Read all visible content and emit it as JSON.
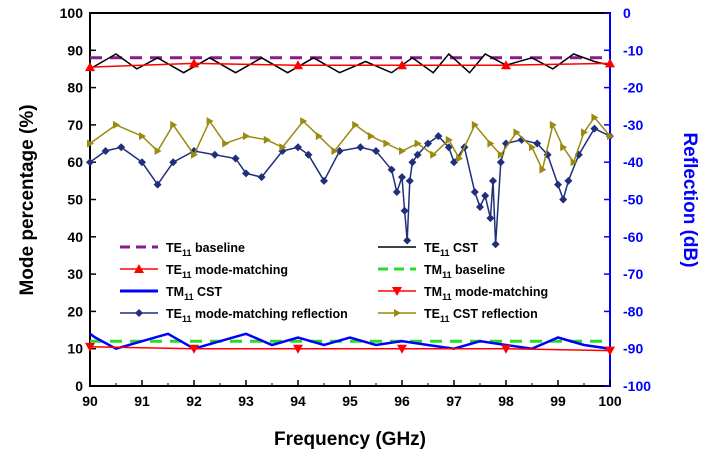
{
  "chart_data": {
    "type": "line",
    "title": "",
    "xlabel": "Frequency (GHz)",
    "ylabel": "Mode percentage (%)",
    "y2label": "Reflection (dB)",
    "xlim": [
      90,
      100
    ],
    "ylim": [
      0,
      100
    ],
    "y2lim": [
      -100,
      0
    ],
    "xticks": [
      "90",
      "91",
      "92",
      "93",
      "94",
      "95",
      "96",
      "97",
      "98",
      "99",
      "100"
    ],
    "yticks": [
      "0",
      "10",
      "20",
      "30",
      "40",
      "50",
      "60",
      "70",
      "80",
      "90",
      "100"
    ],
    "y2ticks": [
      "0",
      "-10",
      "-20",
      "-30",
      "-40",
      "-50",
      "-60",
      "-70",
      "-80",
      "-90",
      "-100"
    ],
    "grid": false,
    "legend_position": "center-left (inside plot, two columns)",
    "colors": {
      "te11_baseline": "#8b1a8b",
      "te11_cst": "#000000",
      "te11_mm": "#ff0000",
      "tm11_baseline": "#22dd22",
      "tm11_cst": "#0000ff",
      "tm11_mm": "#ff0000",
      "mm_reflection": "#1f2f7a",
      "cst_reflection": "#9a8a10",
      "right_axis": "#0000ff"
    },
    "series": [
      {
        "name": "TE11 baseline",
        "axis": "left",
        "style": "dash",
        "x": [
          90,
          100
        ],
        "y": [
          88,
          88
        ]
      },
      {
        "name": "TE11 CST",
        "axis": "left",
        "style": "line",
        "x": [
          90,
          90.5,
          90.9,
          91.3,
          91.8,
          92.3,
          92.8,
          93.3,
          93.8,
          94.3,
          94.8,
          95.3,
          95.8,
          96.2,
          96.6,
          96.9,
          97.3,
          97.6,
          98.0,
          98.5,
          98.9,
          99.3,
          99.7,
          100
        ],
        "y": [
          85,
          89,
          85,
          88,
          84,
          88,
          84,
          88,
          84,
          88,
          84,
          87,
          84,
          88,
          84,
          89,
          84,
          89,
          86,
          88,
          85,
          89,
          87,
          86
        ]
      },
      {
        "name": "TE11 mode-matching",
        "axis": "left",
        "style": "marker-up",
        "x": [
          90,
          92,
          94,
          96,
          98,
          100
        ],
        "y": [
          85.5,
          86.5,
          86,
          86,
          86,
          86.5
        ]
      },
      {
        "name": "TM11 baseline",
        "axis": "left",
        "style": "dash",
        "x": [
          90,
          100
        ],
        "y": [
          12,
          12
        ]
      },
      {
        "name": "TM11 CST",
        "axis": "left",
        "style": "line",
        "x": [
          90,
          90.1,
          90.5,
          91.0,
          91.5,
          92.0,
          92.5,
          93.0,
          93.5,
          94.0,
          94.5,
          95.0,
          95.5,
          96.0,
          96.5,
          97.0,
          97.5,
          98.0,
          98.5,
          99.0,
          99.5,
          100
        ],
        "y": [
          14,
          13,
          10,
          12,
          14,
          10,
          12,
          14,
          11,
          13,
          11,
          13,
          11,
          12,
          11,
          10,
          12,
          11,
          10,
          13,
          11,
          10
        ]
      },
      {
        "name": "TM11 mode-matching",
        "axis": "left",
        "style": "marker-down",
        "x": [
          90,
          92,
          94,
          96,
          98,
          100
        ],
        "y": [
          10.5,
          10,
          10,
          10,
          10,
          9.5
        ]
      },
      {
        "name": "TE11 mode-matching reflection",
        "axis": "right",
        "style": "marker-diamond",
        "x": [
          90,
          90.3,
          90.6,
          91.0,
          91.3,
          91.6,
          92.0,
          92.4,
          92.8,
          93.0,
          93.3,
          93.7,
          94.0,
          94.2,
          94.5,
          94.8,
          95.2,
          95.5,
          95.8,
          95.9,
          96.0,
          96.05,
          96.1,
          96.15,
          96.2,
          96.3,
          96.5,
          96.7,
          96.9,
          97.0,
          97.2,
          97.4,
          97.5,
          97.6,
          97.7,
          97.75,
          97.8,
          97.9,
          98.0,
          98.3,
          98.6,
          98.8,
          99.0,
          99.1,
          99.2,
          99.4,
          99.7,
          100
        ],
        "y": [
          -40,
          -37,
          -36,
          -40,
          -46,
          -40,
          -37,
          -38,
          -39,
          -43,
          -44,
          -37,
          -36,
          -38,
          -45,
          -37,
          -36,
          -37,
          -42,
          -48,
          -44,
          -53,
          -61,
          -45,
          -40,
          -38,
          -35,
          -33,
          -36,
          -40,
          -36,
          -48,
          -52,
          -49,
          -55,
          -45,
          -62,
          -40,
          -35,
          -34,
          -35,
          -38,
          -46,
          -50,
          -45,
          -38,
          -31,
          -33
        ]
      },
      {
        "name": "TE11 CST reflection",
        "axis": "right",
        "style": "marker-triangle-right",
        "x": [
          90,
          90.5,
          91.0,
          91.3,
          91.6,
          92.0,
          92.3,
          92.6,
          93.0,
          93.4,
          93.7,
          94.1,
          94.4,
          94.7,
          95.1,
          95.4,
          95.7,
          96.0,
          96.3,
          96.6,
          96.9,
          97.1,
          97.4,
          97.7,
          97.9,
          98.2,
          98.5,
          98.7,
          98.9,
          99.1,
          99.3,
          99.5,
          99.7,
          100
        ],
        "y": [
          -35,
          -30,
          -33,
          -37,
          -30,
          -38,
          -29,
          -35,
          -33,
          -34,
          -36,
          -29,
          -33,
          -37,
          -30,
          -33,
          -35,
          -37,
          -35,
          -38,
          -34,
          -39,
          -30,
          -35,
          -38,
          -32,
          -36,
          -42,
          -30,
          -36,
          -40,
          -32,
          -28,
          -33
        ]
      }
    ],
    "legend": [
      {
        "key": "te11_baseline",
        "main": "TE",
        "sub": "11",
        "rest": " baseline"
      },
      {
        "key": "te11_cst",
        "main": "TE",
        "sub": "11",
        "rest": " CST"
      },
      {
        "key": "te11_mm",
        "main": "TE",
        "sub": "11",
        "rest": " mode-matching"
      },
      {
        "key": "tm11_baseline",
        "main": "TM",
        "sub": "11",
        "rest": " baseline"
      },
      {
        "key": "tm11_cst",
        "main": "TM",
        "sub": "11",
        "rest": " CST"
      },
      {
        "key": "tm11_mm",
        "main": "TM",
        "sub": "11",
        "rest": " mode-matching"
      },
      {
        "key": "mm_reflection",
        "main": "TE",
        "sub": "11",
        "rest": " mode-matching reflection"
      },
      {
        "key": "cst_reflection",
        "main": "TE",
        "sub": "11",
        "rest": " CST reflection"
      }
    ]
  }
}
